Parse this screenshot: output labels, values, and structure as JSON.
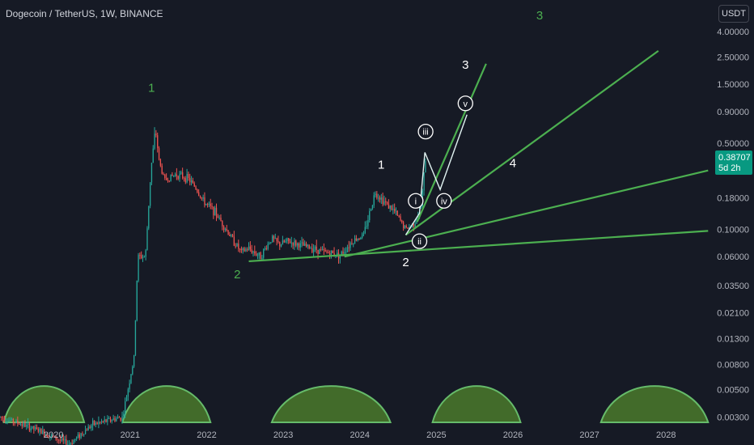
{
  "header": {
    "symbol_title": "Dogecoin / TetherUS, 1W, BINANCE",
    "currency_button": "USDT"
  },
  "last_price": {
    "value": "0.38707",
    "countdown": "5d 2h",
    "color": "#089981"
  },
  "colors": {
    "background": "#161a25",
    "up_candle": "#26a69a",
    "down_candle": "#ef5350",
    "trendline": "#4caf50",
    "dome_fill": "#4a7a2c",
    "wave_white": "#ffffff",
    "wave_green": "#4caf50"
  },
  "chart_data": {
    "type": "candlestick",
    "title": "Dogecoin / TetherUS, 1W, BINANCE",
    "y_scale": "log",
    "y_ticks": [
      "4.00000",
      "2.50000",
      "1.50000",
      "0.90000",
      "0.50000",
      "0.18000",
      "0.10000",
      "0.06000",
      "0.03500",
      "0.02100",
      "0.01300",
      "0.00800",
      "0.00500",
      "0.00300"
    ],
    "x_ticks": [
      "2020",
      "2021",
      "2022",
      "2023",
      "2024",
      "2025",
      "2026",
      "2027",
      "2028"
    ],
    "ylim": [
      0.0028,
      4.6
    ],
    "price_path": [
      [
        2019.3,
        0.003
      ],
      [
        2019.6,
        0.0026
      ],
      [
        2019.9,
        0.0022
      ],
      [
        2020.2,
        0.0018
      ],
      [
        2020.5,
        0.0026
      ],
      [
        2020.9,
        0.003
      ],
      [
        2021.05,
        0.009
      ],
      [
        2021.1,
        0.06
      ],
      [
        2021.2,
        0.06
      ],
      [
        2021.27,
        0.3
      ],
      [
        2021.33,
        0.65
      ],
      [
        2021.38,
        0.35
      ],
      [
        2021.45,
        0.25
      ],
      [
        2021.6,
        0.28
      ],
      [
        2021.75,
        0.26
      ],
      [
        2021.85,
        0.22
      ],
      [
        2021.95,
        0.17
      ],
      [
        2022.1,
        0.14
      ],
      [
        2022.3,
        0.09
      ],
      [
        2022.45,
        0.065
      ],
      [
        2022.55,
        0.07
      ],
      [
        2022.7,
        0.06
      ],
      [
        2022.85,
        0.085
      ],
      [
        2022.95,
        0.075
      ],
      [
        2023.05,
        0.08
      ],
      [
        2023.2,
        0.075
      ],
      [
        2023.4,
        0.07
      ],
      [
        2023.55,
        0.065
      ],
      [
        2023.75,
        0.062
      ],
      [
        2023.9,
        0.08
      ],
      [
        2024.05,
        0.09
      ],
      [
        2024.2,
        0.2
      ],
      [
        2024.35,
        0.16
      ],
      [
        2024.45,
        0.14
      ],
      [
        2024.6,
        0.1
      ],
      [
        2024.7,
        0.11
      ],
      [
        2024.8,
        0.15
      ],
      [
        2024.86,
        0.38
      ]
    ],
    "wave_path": [
      [
        2024.6,
        0.09
      ],
      [
        2024.78,
        0.135
      ],
      [
        2024.85,
        0.42
      ],
      [
        2025.05,
        0.21
      ],
      [
        2025.4,
        0.85
      ]
    ],
    "trendlines": [
      {
        "from": [
          2022.55,
          0.055
        ],
        "to": [
          2028.55,
          0.097
        ]
      },
      {
        "from": [
          2023.8,
          0.06
        ],
        "to": [
          2028.55,
          0.3
        ]
      },
      {
        "from": [
          2024.6,
          0.09
        ],
        "to": [
          2027.9,
          2.8
        ]
      },
      {
        "from": [
          2024.75,
          0.115
        ],
        "to": [
          2025.65,
          2.2
        ]
      }
    ],
    "wave_labels": [
      {
        "text": "1",
        "x": 2021.28,
        "y": 1.3,
        "style": "green"
      },
      {
        "text": "2",
        "x": 2022.4,
        "y": 0.04,
        "style": "green"
      },
      {
        "text": "3",
        "x": 2026.35,
        "y": 7.8,
        "style": "green"
      },
      {
        "text": "1",
        "x": 2024.28,
        "y": 0.31,
        "style": "white"
      },
      {
        "text": "2",
        "x": 2024.6,
        "y": 0.05,
        "style": "white"
      },
      {
        "text": "3",
        "x": 2025.38,
        "y": 2.0,
        "style": "white"
      },
      {
        "text": "4",
        "x": 2026.0,
        "y": 0.32,
        "style": "white"
      }
    ],
    "roman_labels": [
      {
        "text": "i",
        "x": 2024.73,
        "y": 0.17
      },
      {
        "text": "ii",
        "x": 2024.78,
        "y": 0.08
      },
      {
        "text": "iii",
        "x": 2024.86,
        "y": 0.62
      },
      {
        "text": "iv",
        "x": 2025.1,
        "y": 0.17
      },
      {
        "text": "v",
        "x": 2025.38,
        "y": 1.05
      }
    ],
    "cycle_domes": [
      {
        "start": 2019.35,
        "end": 2020.4
      },
      {
        "start": 2020.9,
        "end": 2022.05
      },
      {
        "start": 2022.85,
        "end": 2024.4
      },
      {
        "start": 2024.95,
        "end": 2026.1
      },
      {
        "start": 2027.15,
        "end": 2028.55
      }
    ]
  }
}
